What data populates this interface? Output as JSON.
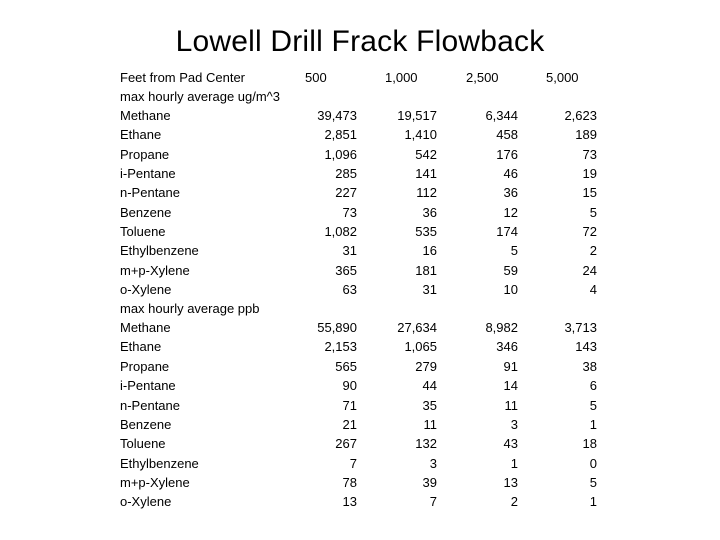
{
  "title": "Lowell Drill Frack Flowback",
  "header": {
    "label": "Feet from Pad Center",
    "distances": [
      "500",
      "1,000",
      "2,500",
      "5,000"
    ]
  },
  "section_ugm3": {
    "heading": "max hourly average ug/m^3",
    "rows": [
      {
        "name": "Methane",
        "values": [
          "39,473",
          "19,517",
          "6,344",
          "2,623"
        ]
      },
      {
        "name": "Ethane",
        "values": [
          "2,851",
          "1,410",
          "458",
          "189"
        ]
      },
      {
        "name": "Propane",
        "values": [
          "1,096",
          "542",
          "176",
          "73"
        ]
      },
      {
        "name": "i-Pentane",
        "values": [
          "285",
          "141",
          "46",
          "19"
        ]
      },
      {
        "name": "n-Pentane",
        "values": [
          "227",
          "112",
          "36",
          "15"
        ]
      },
      {
        "name": "Benzene",
        "values": [
          "73",
          "36",
          "12",
          "5"
        ]
      },
      {
        "name": "Toluene",
        "values": [
          "1,082",
          "535",
          "174",
          "72"
        ]
      },
      {
        "name": "Ethylbenzene",
        "values": [
          "31",
          "16",
          "5",
          "2"
        ]
      },
      {
        "name": "m+p-Xylene",
        "values": [
          "365",
          "181",
          "59",
          "24"
        ]
      },
      {
        "name": "o-Xylene",
        "values": [
          "63",
          "31",
          "10",
          "4"
        ]
      }
    ]
  },
  "section_ppb": {
    "heading": "max hourly average ppb",
    "rows": [
      {
        "name": "Methane",
        "values": [
          "55,890",
          "27,634",
          "8,982",
          "3,713"
        ]
      },
      {
        "name": "Ethane",
        "values": [
          "2,153",
          "1,065",
          "346",
          "143"
        ]
      },
      {
        "name": "Propane",
        "values": [
          "565",
          "279",
          "91",
          "38"
        ]
      },
      {
        "name": "i-Pentane",
        "values": [
          "90",
          "44",
          "14",
          "6"
        ]
      },
      {
        "name": "n-Pentane",
        "values": [
          "71",
          "35",
          "11",
          "5"
        ]
      },
      {
        "name": "Benzene",
        "values": [
          "21",
          "11",
          "3",
          "1"
        ]
      },
      {
        "name": "Toluene",
        "values": [
          "267",
          "132",
          "43",
          "18"
        ]
      },
      {
        "name": "Ethylbenzene",
        "values": [
          "7",
          "3",
          "1",
          "0"
        ]
      },
      {
        "name": "m+p-Xylene",
        "values": [
          "78",
          "39",
          "13",
          "5"
        ]
      },
      {
        "name": "o-Xylene",
        "values": [
          "13",
          "7",
          "2",
          "1"
        ]
      }
    ]
  }
}
